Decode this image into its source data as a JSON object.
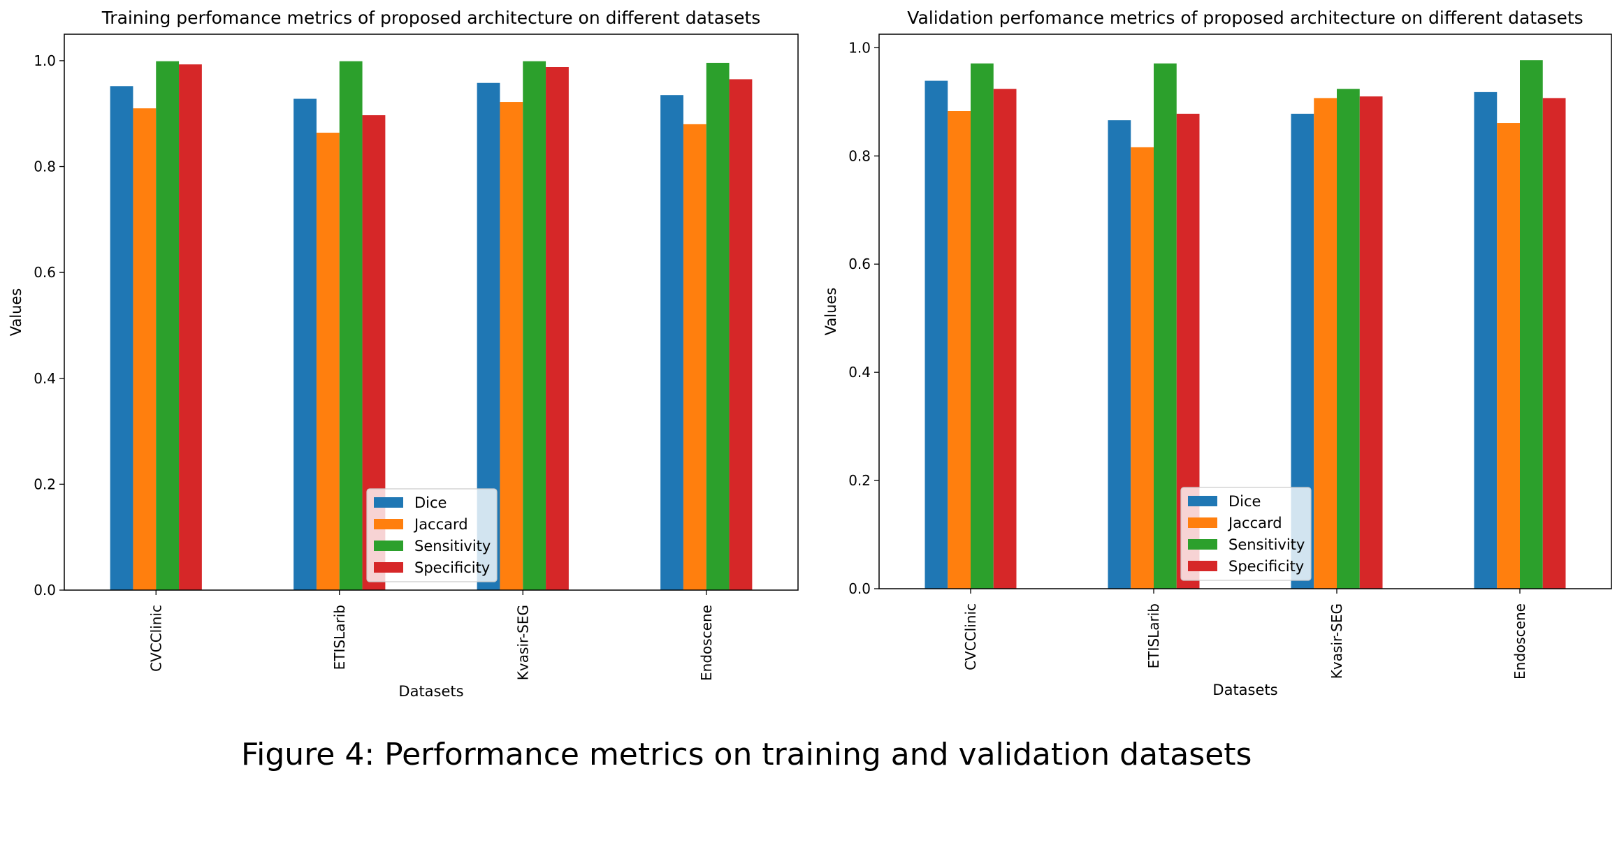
{
  "caption": "Figure 4: Performance metrics on training and validation datasets",
  "colors": {
    "Dice": "#1f77b4",
    "Jaccard": "#ff7f0e",
    "Sensitivity": "#2ca02c",
    "Specificity": "#d62728"
  },
  "chart_data": [
    {
      "type": "bar",
      "title": "Training perfomance metrics of proposed architecture on different datasets",
      "xlabel": "Datasets",
      "ylabel": "Values",
      "categories": [
        "CVCClinic",
        "ETISLarib",
        "Kvasir-SEG",
        "Endoscene"
      ],
      "series": [
        {
          "name": "Dice",
          "values": [
            0.952,
            0.928,
            0.958,
            0.935
          ]
        },
        {
          "name": "Jaccard",
          "values": [
            0.91,
            0.864,
            0.922,
            0.88
          ]
        },
        {
          "name": "Sensitivity",
          "values": [
            0.999,
            0.999,
            0.999,
            0.996
          ]
        },
        {
          "name": "Specificity",
          "values": [
            0.993,
            0.897,
            0.988,
            0.965
          ]
        }
      ],
      "ylim": [
        0,
        1.05
      ],
      "yticks": [
        "0.0",
        "0.2",
        "0.4",
        "0.6",
        "0.8",
        "1.0"
      ],
      "grid": false,
      "legend": "lower-center"
    },
    {
      "type": "bar",
      "title": "Validation perfomance metrics of proposed architecture on different datasets",
      "xlabel": "Datasets",
      "ylabel": "Values",
      "categories": [
        "CVCClinic",
        "ETISLarib",
        "Kvasir-SEG",
        "Endoscene"
      ],
      "series": [
        {
          "name": "Dice",
          "values": [
            0.939,
            0.866,
            0.878,
            0.918
          ]
        },
        {
          "name": "Jaccard",
          "values": [
            0.883,
            0.816,
            0.907,
            0.861
          ]
        },
        {
          "name": "Sensitivity",
          "values": [
            0.971,
            0.971,
            0.924,
            0.977
          ]
        },
        {
          "name": "Specificity",
          "values": [
            0.924,
            0.878,
            0.91,
            0.907
          ]
        }
      ],
      "ylim": [
        0,
        1.025
      ],
      "yticks": [
        "0.0",
        "0.2",
        "0.4",
        "0.6",
        "0.8",
        "1.0"
      ],
      "grid": false,
      "legend": "lower-center"
    }
  ]
}
